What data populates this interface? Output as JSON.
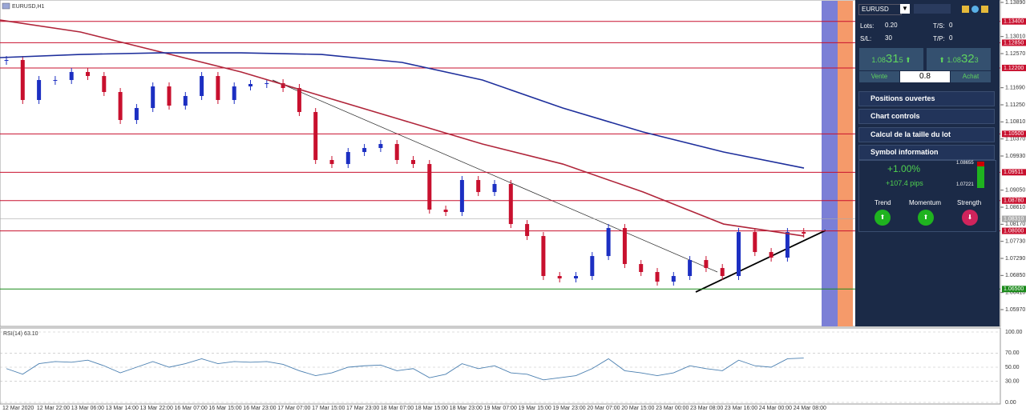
{
  "header": {
    "symbol_label": "EURUSD,H1"
  },
  "price_axis": {
    "ylim": [
      1.0597,
      1.1389
    ],
    "ticks": [
      {
        "value": 1.1389,
        "label": "1.13890"
      },
      {
        "value": 1.1301,
        "label": "1.13010"
      },
      {
        "value": 1.1257,
        "label": "1.12570"
      },
      {
        "value": 1.1169,
        "label": "1.11690"
      },
      {
        "value": 1.1125,
        "label": "1.11250"
      },
      {
        "value": 1.1081,
        "label": "1.10810"
      },
      {
        "value": 1.1037,
        "label": "1.10370"
      },
      {
        "value": 1.0993,
        "label": "1.09930"
      },
      {
        "value": 1.0905,
        "label": "1.09050"
      },
      {
        "value": 1.0861,
        "label": "1.08610"
      },
      {
        "value": 1.0817,
        "label": "1.08170"
      },
      {
        "value": 1.0773,
        "label": "1.07730"
      },
      {
        "value": 1.0729,
        "label": "1.07290"
      },
      {
        "value": 1.0685,
        "label": "1.06850"
      },
      {
        "value": 1.0641,
        "label": "1.06410"
      },
      {
        "value": 1.0597,
        "label": "1.05970"
      }
    ]
  },
  "levels": [
    {
      "value": 1.134,
      "label": "1.13400",
      "color": "#c8102e"
    },
    {
      "value": 1.1285,
      "label": "1.12850",
      "color": "#c8102e"
    },
    {
      "value": 1.122,
      "label": "1.12200",
      "color": "#c8102e"
    },
    {
      "value": 1.105,
      "label": "1.10500",
      "color": "#c8102e"
    },
    {
      "value": 1.09511,
      "label": "1.09511",
      "color": "#c8102e"
    },
    {
      "value": 1.0878,
      "label": "1.08780",
      "color": "#c8102e"
    },
    {
      "value": 1.08,
      "label": "1.08000",
      "color": "#c8102e"
    },
    {
      "value": 1.065,
      "label": "1.06500",
      "color": "#1a8a1a"
    }
  ],
  "current_price": {
    "value": 1.0831,
    "label": "1.08310",
    "color": "#aaaaaa"
  },
  "candles": {
    "up_color": "#1c2fc2",
    "down_color": "#c8102e",
    "closes": [
      1.12405,
      1.11374,
      1.11889,
      1.11889,
      1.12096,
      1.11992,
      1.1158,
      1.10858,
      1.11167,
      1.11724,
      1.11229,
      1.11477,
      1.11992,
      1.11374,
      1.11724,
      1.11786,
      1.11807,
      1.11683,
      1.11064,
      1.09827,
      1.09723,
      1.10033,
      1.10136,
      1.10239,
      1.09827,
      1.09723,
      1.08548,
      1.08486,
      1.09311,
      1.09001,
      1.09208,
      1.08176,
      1.07867,
      1.06836,
      1.06774,
      1.06836,
      1.07351,
      1.08073,
      1.07145,
      1.06939,
      1.06691,
      1.06836,
      1.07248,
      1.07042,
      1.06836,
      1.0797,
      1.07454,
      1.0731,
      1.0797,
      1.07929
    ]
  },
  "moving_averages": [
    {
      "color": "#b0253a",
      "values": [
        1.13436,
        1.13127,
        1.12611,
        1.12096,
        1.11477,
        1.10858,
        1.10239,
        1.09723,
        1.09001,
        1.08176,
        1.07867
      ]
    },
    {
      "color": "#1e2f9c",
      "values": [
        1.12467,
        1.12549,
        1.1259,
        1.1259,
        1.12549,
        1.12343,
        1.11889,
        1.11167,
        1.10548,
        1.10033,
        1.0962
      ]
    }
  ],
  "x_axis": [
    "12 Mar 2020",
    "12 Mar 22:00",
    "13 Mar 06:00",
    "13 Mar 14:00",
    "13 Mar 22:00",
    "16 Mar 07:00",
    "16 Mar 15:00",
    "16 Mar 23:00",
    "17 Mar 07:00",
    "17 Mar 15:00",
    "17 Mar 23:00",
    "18 Mar 07:00",
    "18 Mar 15:00",
    "18 Mar 23:00",
    "19 Mar 07:00",
    "19 Mar 15:00",
    "19 Mar 23:00",
    "20 Mar 07:00",
    "20 Mar 15:00",
    "23 Mar 00:00",
    "23 Mar 08:00",
    "23 Mar 16:00",
    "24 Mar 00:00",
    "24 Mar 08:00"
  ],
  "rsi": {
    "label": "RSI(14) 63.10",
    "color": "#4a7fb0",
    "ylim": [
      0,
      100
    ],
    "ticks": [
      {
        "value": 100,
        "label": "100.00"
      },
      {
        "value": 70,
        "label": "70.00"
      },
      {
        "value": 50,
        "label": "50.00"
      },
      {
        "value": 30,
        "label": "30.00"
      },
      {
        "value": 0,
        "label": "0.00"
      }
    ],
    "values": [
      48,
      40,
      55,
      58,
      57,
      60,
      52,
      42,
      50,
      58,
      50,
      55,
      62,
      55,
      58,
      57,
      58,
      54,
      45,
      38,
      42,
      50,
      52,
      53,
      45,
      48,
      35,
      40,
      55,
      48,
      52,
      42,
      40,
      32,
      35,
      38,
      48,
      62,
      45,
      42,
      38,
      42,
      52,
      48,
      45,
      60,
      52,
      50,
      62,
      63
    ]
  },
  "panel": {
    "symbol": "EURUSD",
    "lots_label": "Lots:",
    "lots": "0.20",
    "ts_label": "T/S:",
    "ts": "0",
    "sl_label": "S/L:",
    "sl": "30",
    "tp_label": "T/P:",
    "tp": "0",
    "sell": {
      "big": "1.08",
      "pips": "31",
      "point": "5",
      "label": "Vente"
    },
    "buy": {
      "big": "1.08",
      "pips": "32",
      "point": "3",
      "label": "Achat"
    },
    "spread": "0.8",
    "sections": [
      "Positions ouvertes",
      "Chart controls",
      "Calcul de la taille du lot",
      "Symbol information"
    ],
    "change_pct": "+1.00%",
    "change_pips": "+107.4 pips",
    "range_high": "1.08655",
    "range_low": "1.07221",
    "indicators": [
      "Trend",
      "Momentum",
      "Strength"
    ]
  }
}
